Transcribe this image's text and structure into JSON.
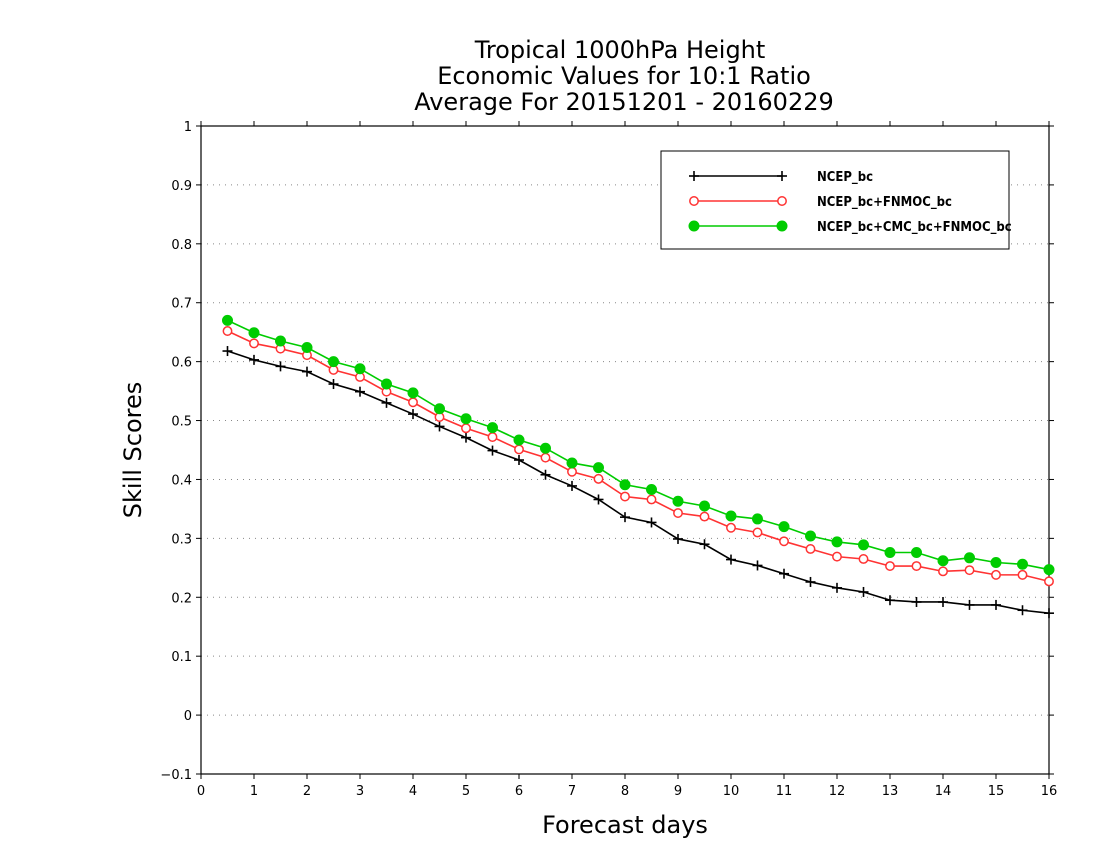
{
  "chart_data": {
    "type": "line",
    "title": [
      "Tropical 1000hPa Height",
      "Economic Values for 10:1 Ratio",
      "Average For 20151201 - 20160229"
    ],
    "xlabel": "Forecast days",
    "ylabel": "Skill Scores",
    "xlim": [
      0,
      16
    ],
    "ylim": [
      -0.1,
      1
    ],
    "xticks": [
      "0",
      "1",
      "2",
      "3",
      "4",
      "5",
      "6",
      "7",
      "8",
      "9",
      "10",
      "11",
      "12",
      "13",
      "14",
      "15",
      "16"
    ],
    "yticks": [
      "−0.1",
      "0",
      "0.1",
      "0.2",
      "0.3",
      "0.4",
      "0.5",
      "0.6",
      "0.7",
      "0.8",
      "0.9",
      "1"
    ],
    "grid": "horizontal dotted",
    "legend_position": "top-right",
    "x": [
      0.5,
      1,
      1.5,
      2,
      2.5,
      3,
      3.5,
      4,
      4.5,
      5,
      5.5,
      6,
      6.5,
      7,
      7.5,
      8,
      8.5,
      9,
      9.5,
      10,
      10.5,
      11,
      11.5,
      12,
      12.5,
      13,
      13.5,
      14,
      14.5,
      15,
      15.5,
      16
    ],
    "series": [
      {
        "name": "NCEP_bc",
        "color": "#000000",
        "marker": "plus",
        "values": [
          0.618,
          0.603,
          0.592,
          0.583,
          0.562,
          0.549,
          0.53,
          0.511,
          0.49,
          0.471,
          0.449,
          0.433,
          0.408,
          0.389,
          0.366,
          0.336,
          0.327,
          0.299,
          0.29,
          0.264,
          0.254,
          0.24,
          0.226,
          0.216,
          0.209,
          0.195,
          0.192,
          0.192,
          0.187,
          0.187,
          0.178,
          0.173
        ]
      },
      {
        "name": "NCEP_bc+FNMOC_bc",
        "color": "#ff3333",
        "marker": "open-circle",
        "values": [
          0.652,
          0.631,
          0.622,
          0.611,
          0.586,
          0.574,
          0.549,
          0.531,
          0.506,
          0.487,
          0.472,
          0.451,
          0.437,
          0.413,
          0.401,
          0.371,
          0.366,
          0.343,
          0.337,
          0.318,
          0.31,
          0.295,
          0.282,
          0.269,
          0.265,
          0.253,
          0.253,
          0.244,
          0.246,
          0.238,
          0.238,
          0.227
        ]
      },
      {
        "name": "NCEP_bc+CMC_bc+FNMOC_bc",
        "color": "#00cc00",
        "marker": "filled-circle",
        "values": [
          0.67,
          0.649,
          0.635,
          0.624,
          0.6,
          0.588,
          0.562,
          0.547,
          0.52,
          0.503,
          0.488,
          0.467,
          0.453,
          0.428,
          0.42,
          0.391,
          0.383,
          0.363,
          0.355,
          0.338,
          0.333,
          0.32,
          0.304,
          0.294,
          0.289,
          0.276,
          0.276,
          0.262,
          0.267,
          0.259,
          0.256,
          0.247
        ]
      }
    ]
  }
}
